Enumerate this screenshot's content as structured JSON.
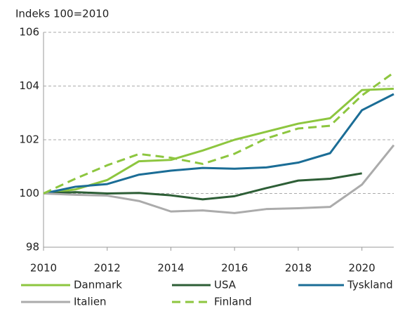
{
  "chart_data": {
    "type": "line",
    "y_label": "Indeks 100=2010",
    "x": [
      2010,
      2011,
      2012,
      2013,
      2014,
      2015,
      2016,
      2017,
      2018,
      2019,
      2020,
      2021
    ],
    "xlim": [
      2010,
      2021
    ],
    "xticks": [
      2010,
      2012,
      2014,
      2016,
      2018,
      2020
    ],
    "ylim": [
      98,
      106
    ],
    "yticks": [
      98,
      100,
      102,
      104,
      106
    ],
    "grid": true,
    "legend": "bottom",
    "series": [
      {
        "name": "Danmark",
        "color": "#8dc63f",
        "style": "solid",
        "values": [
          100,
          100.15,
          100.5,
          101.2,
          101.25,
          101.6,
          102.0,
          102.3,
          102.6,
          102.8,
          103.85,
          103.9
        ]
      },
      {
        "name": "USA",
        "color": "#2d5e36",
        "style": "solid",
        "values": [
          100,
          100.05,
          100.0,
          100.02,
          99.93,
          99.78,
          99.9,
          100.2,
          100.48,
          100.55,
          100.75,
          null
        ]
      },
      {
        "name": "Tyskland",
        "color": "#1b6d96",
        "style": "solid",
        "values": [
          100,
          100.25,
          100.35,
          100.7,
          100.85,
          100.95,
          100.92,
          100.97,
          101.15,
          101.5,
          103.1,
          103.7
        ]
      },
      {
        "name": "Italien",
        "color": "#ababab",
        "style": "solid",
        "values": [
          100,
          99.95,
          99.92,
          99.72,
          99.33,
          99.37,
          99.27,
          99.42,
          99.45,
          99.5,
          100.33,
          101.8
        ]
      },
      {
        "name": "Finland",
        "color": "#8dc63f",
        "style": "dashed",
        "values": [
          100,
          100.55,
          101.05,
          101.47,
          101.33,
          101.1,
          101.48,
          102.05,
          102.42,
          102.52,
          103.65,
          104.5
        ]
      }
    ]
  }
}
